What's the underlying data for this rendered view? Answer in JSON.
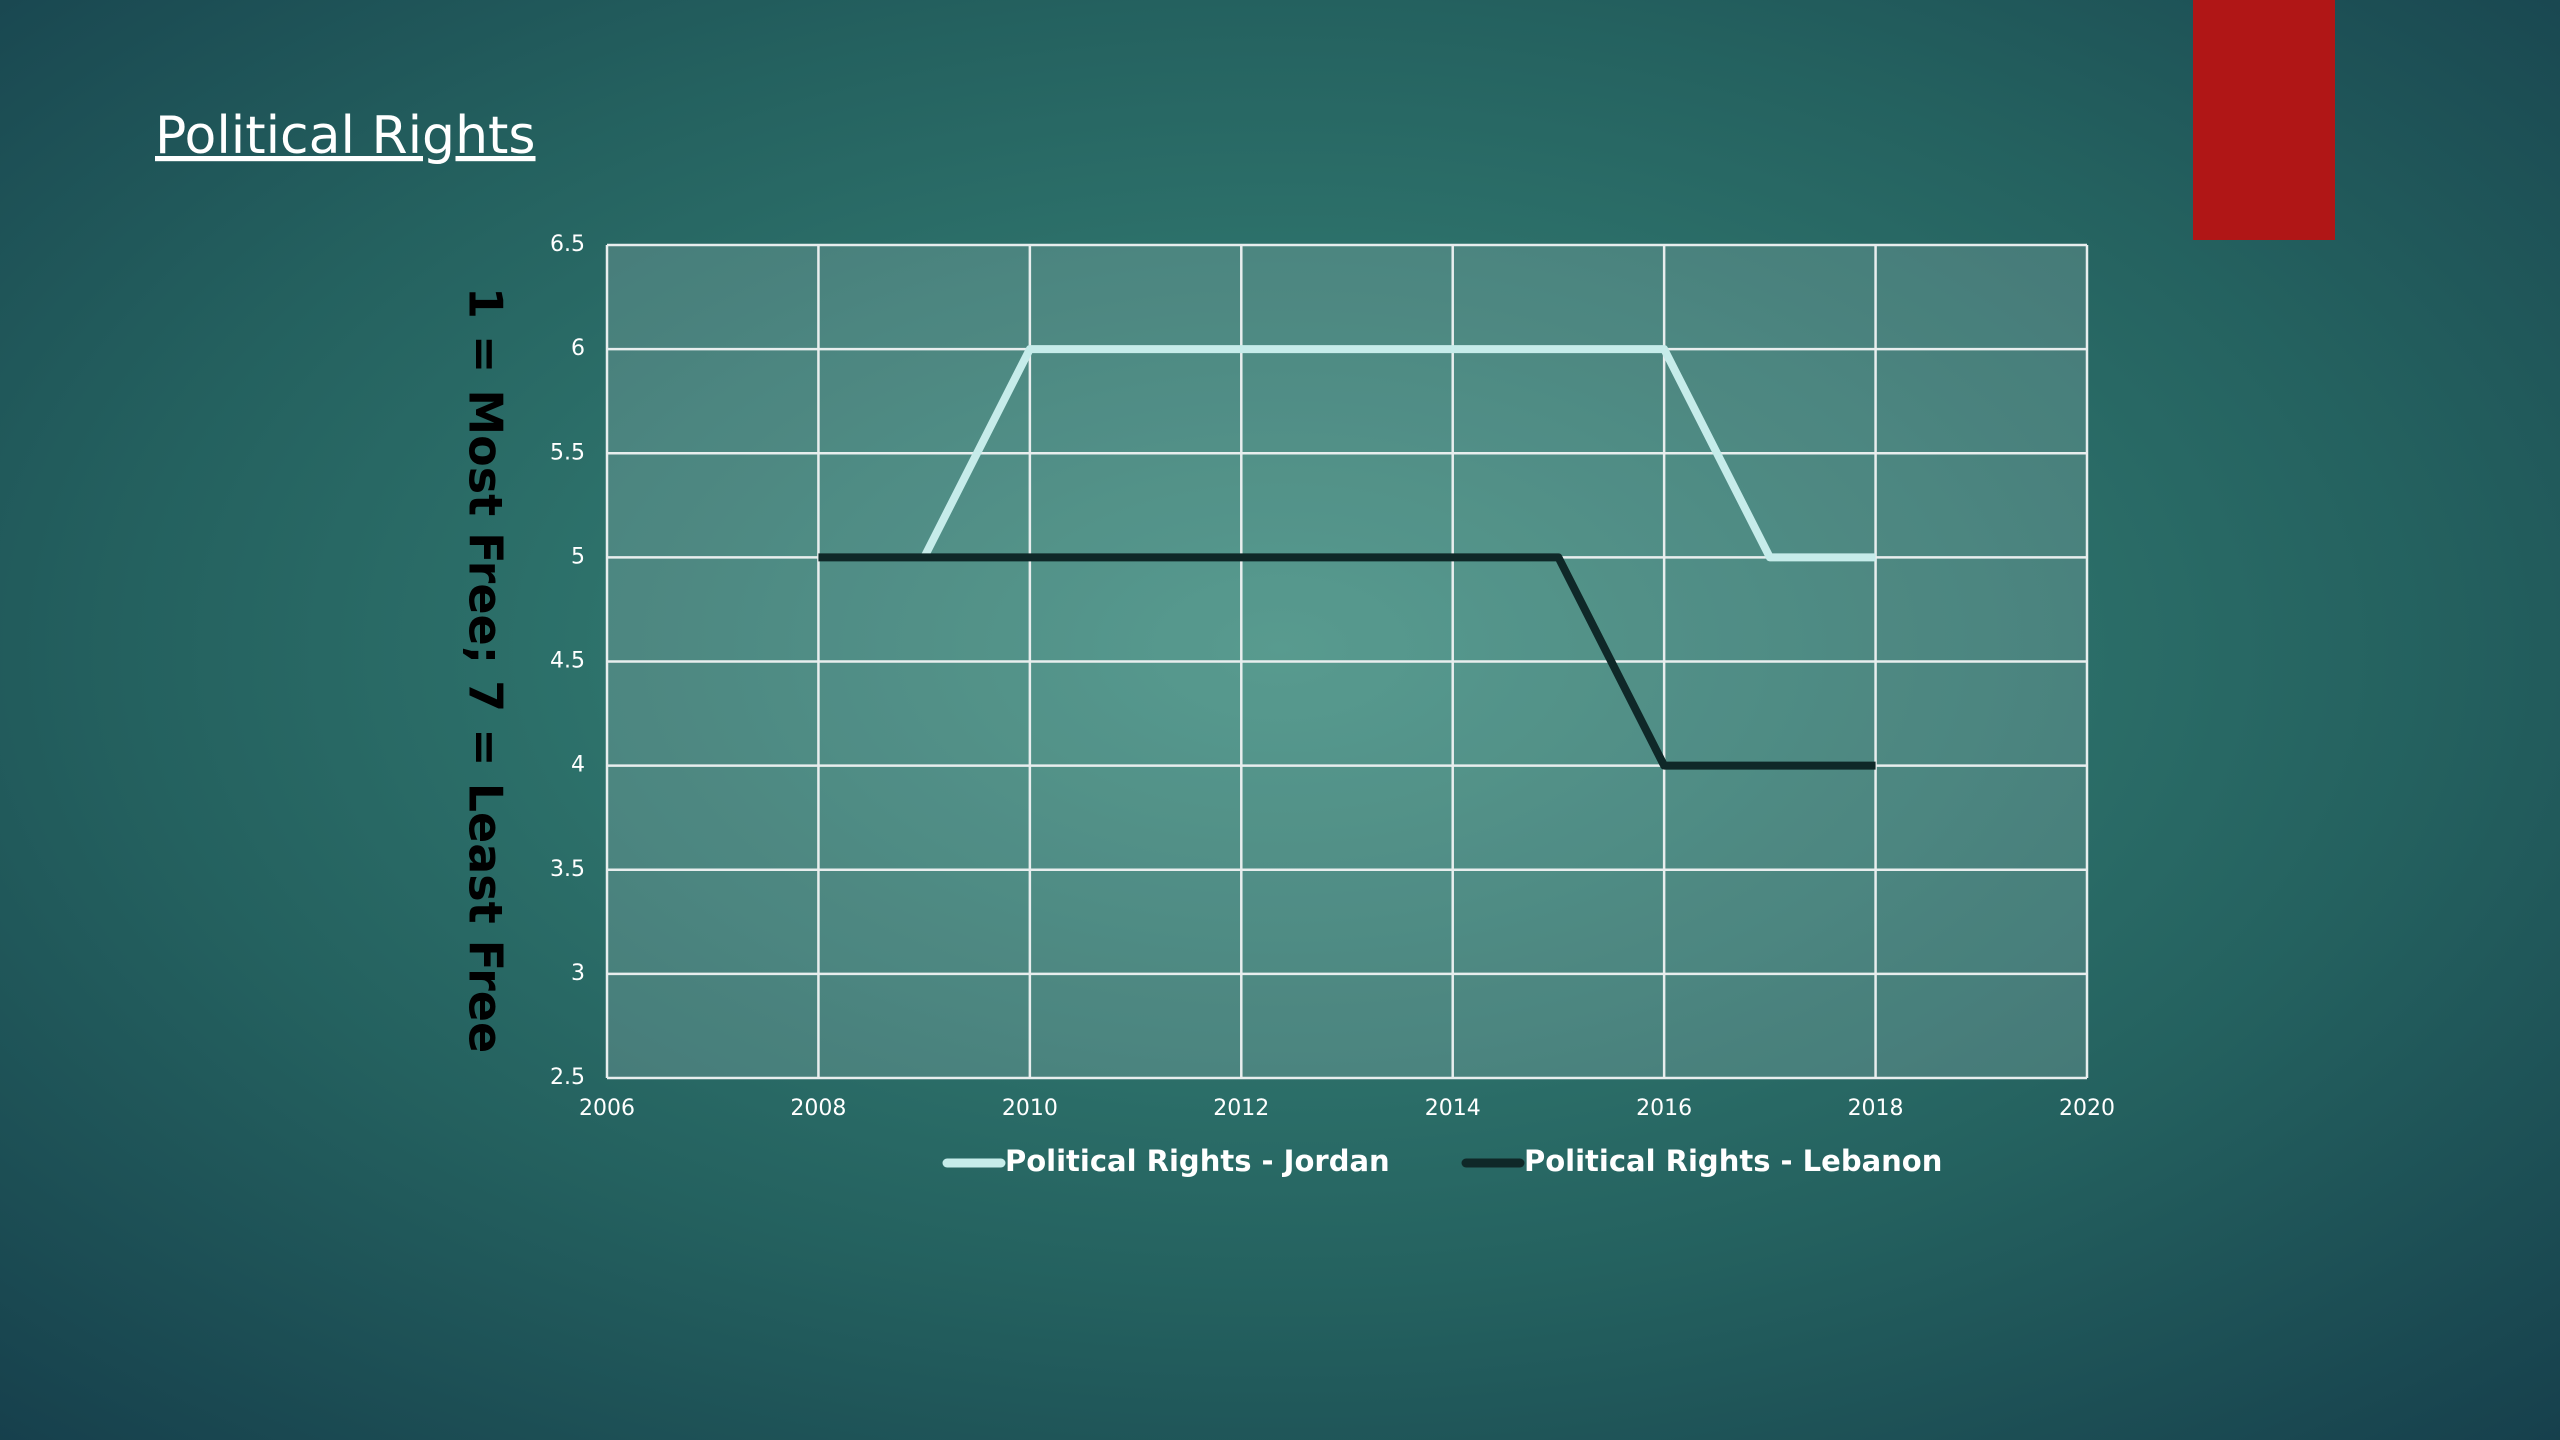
{
  "chart_data": {
    "type": "line",
    "title": "Political Rights",
    "y_label": "1 = Most Free; 7 = Least Free",
    "x": [
      2008,
      2009,
      2010,
      2011,
      2012,
      2013,
      2014,
      2015,
      2016,
      2017,
      2018
    ],
    "series": [
      {
        "name": "Political Rights - Jordan",
        "color": "#c6ecea",
        "values": [
          null,
          5,
          6,
          6,
          6,
          6,
          6,
          6,
          6,
          5,
          5
        ]
      },
      {
        "name": "Political Rights - Lebanon",
        "color": "#0f2828",
        "values": [
          5,
          5,
          5,
          5,
          5,
          5,
          5,
          5,
          4,
          4,
          4
        ]
      }
    ],
    "xlim": [
      2006,
      2020
    ],
    "xticks": [
      2006,
      2008,
      2010,
      2012,
      2014,
      2016,
      2018,
      2020
    ],
    "ylim": [
      2.5,
      6.5
    ],
    "yticks": [
      2.5,
      3,
      3.5,
      4,
      4.5,
      5,
      5.5,
      6,
      6.5
    ],
    "grid": true,
    "legend": "bottom"
  }
}
